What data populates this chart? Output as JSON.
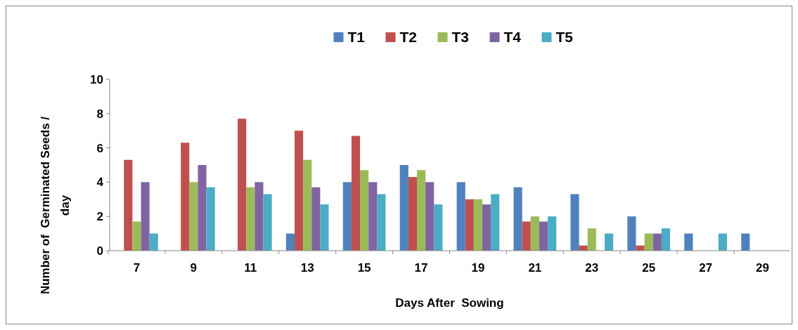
{
  "chart_data": {
    "type": "bar",
    "xlabel": "Days After  Sowing",
    "ylabel": "Number of  Germinated Seeds / day",
    "categories": [
      "7",
      "9",
      "11",
      "13",
      "15",
      "17",
      "19",
      "21",
      "23",
      "25",
      "27",
      "29"
    ],
    "series": [
      {
        "name": "T1",
        "color": "#4f81bd",
        "values": [
          0,
          0,
          0,
          1,
          4,
          5,
          4,
          3.7,
          3.3,
          2,
          1,
          1
        ]
      },
      {
        "name": "T2",
        "color": "#c0504d",
        "values": [
          5.3,
          6.3,
          7.7,
          7,
          6.7,
          4.3,
          3,
          1.7,
          0.3,
          0.3,
          0,
          0
        ]
      },
      {
        "name": "T3",
        "color": "#9bbb59",
        "values": [
          1.7,
          4,
          3.7,
          5.3,
          4.7,
          4.7,
          3,
          2,
          1.3,
          1,
          0,
          0
        ]
      },
      {
        "name": "T4",
        "color": "#8064a2",
        "values": [
          4,
          5,
          4,
          3.7,
          4,
          4,
          2.7,
          1.7,
          0,
          1,
          0,
          0
        ]
      },
      {
        "name": "T5",
        "color": "#4bacc6",
        "values": [
          1,
          3.7,
          3.3,
          2.7,
          3.3,
          2.7,
          3.3,
          2,
          1,
          1.3,
          1,
          0
        ]
      }
    ],
    "ylim": [
      0,
      10
    ],
    "yticks": [
      0,
      2,
      4,
      6,
      8,
      10
    ],
    "legend": "top",
    "grid": false
  }
}
